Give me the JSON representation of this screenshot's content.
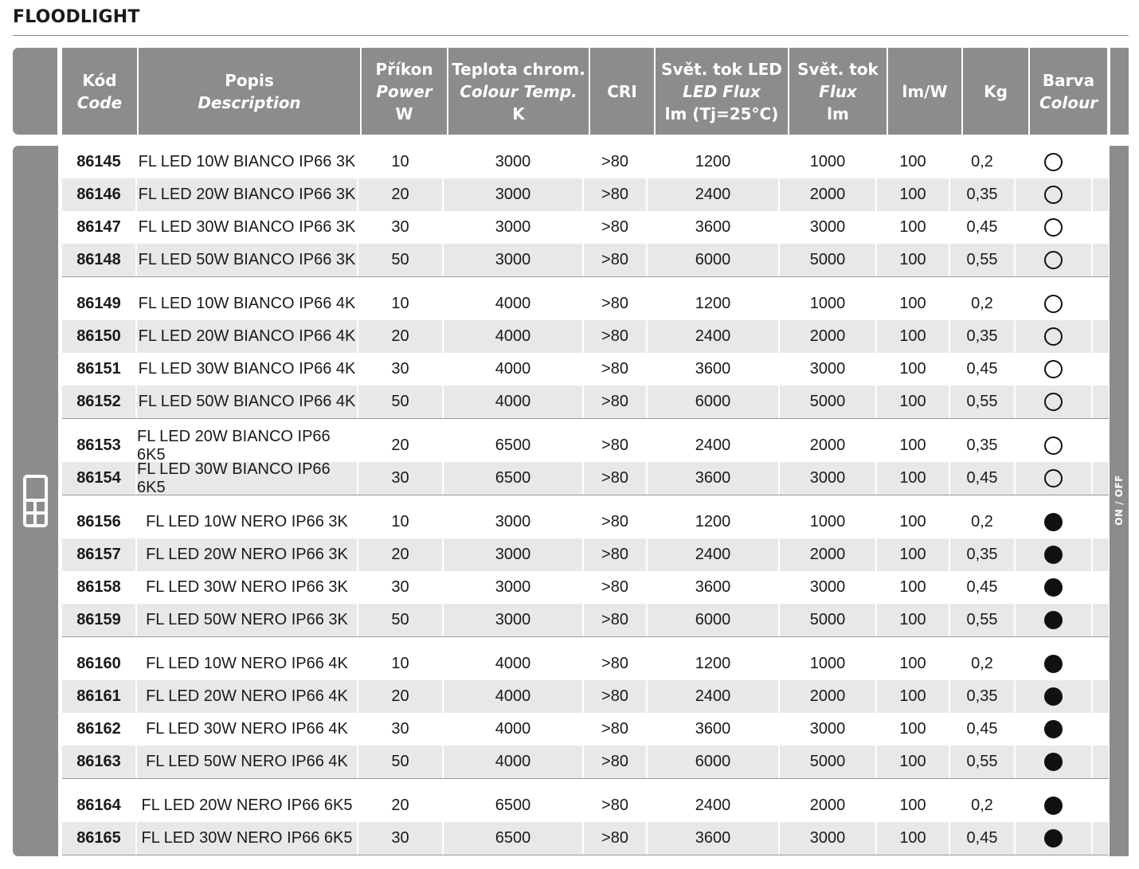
{
  "title": "FLOODLIGHT",
  "side_label": "ON / OFF",
  "columns": [
    {
      "key": "code",
      "lines": [
        "Kód"
      ],
      "italic": [
        "Code"
      ],
      "extra": []
    },
    {
      "key": "desc",
      "lines": [
        "Popis"
      ],
      "italic": [
        "Description"
      ],
      "extra": []
    },
    {
      "key": "power",
      "lines": [
        "Příkon"
      ],
      "italic": [
        "Power"
      ],
      "extra": [
        "W"
      ]
    },
    {
      "key": "temp",
      "lines": [
        "Teplota chrom."
      ],
      "italic": [
        "Colour Temp."
      ],
      "extra": [
        "K"
      ]
    },
    {
      "key": "cri",
      "lines": [
        "CRI"
      ],
      "italic": [],
      "extra": []
    },
    {
      "key": "ledflux",
      "lines": [
        "Svět. tok LED"
      ],
      "italic": [
        "LED Flux"
      ],
      "extra": [
        "lm (Tj=25°C)"
      ]
    },
    {
      "key": "flux",
      "lines": [
        "Svět. tok"
      ],
      "italic": [
        "Flux"
      ],
      "extra": [
        "lm"
      ]
    },
    {
      "key": "lmw",
      "lines": [
        "lm/W"
      ],
      "italic": [],
      "extra": []
    },
    {
      "key": "kg",
      "lines": [
        "Kg"
      ],
      "italic": [],
      "extra": []
    },
    {
      "key": "colour",
      "lines": [
        "Barva"
      ],
      "italic": [
        "Colour"
      ],
      "extra": []
    }
  ],
  "groups": [
    [
      {
        "code": "86145",
        "desc": "FL LED 10W BIANCO IP66 3K",
        "power": "10",
        "temp": "3000",
        "cri": ">80",
        "ledflux": "1200",
        "flux": "1000",
        "lmw": "100",
        "kg": "0,2",
        "colour": "white"
      },
      {
        "code": "86146",
        "desc": "FL LED 20W BIANCO IP66 3K",
        "power": "20",
        "temp": "3000",
        "cri": ">80",
        "ledflux": "2400",
        "flux": "2000",
        "lmw": "100",
        "kg": "0,35",
        "colour": "white"
      },
      {
        "code": "86147",
        "desc": "FL LED 30W BIANCO IP66 3K",
        "power": "30",
        "temp": "3000",
        "cri": ">80",
        "ledflux": "3600",
        "flux": "3000",
        "lmw": "100",
        "kg": "0,45",
        "colour": "white"
      },
      {
        "code": "86148",
        "desc": "FL LED 50W BIANCO IP66 3K",
        "power": "50",
        "temp": "3000",
        "cri": ">80",
        "ledflux": "6000",
        "flux": "5000",
        "lmw": "100",
        "kg": "0,55",
        "colour": "white"
      }
    ],
    [
      {
        "code": "86149",
        "desc": "FL LED 10W BIANCO IP66 4K",
        "power": "10",
        "temp": "4000",
        "cri": ">80",
        "ledflux": "1200",
        "flux": "1000",
        "lmw": "100",
        "kg": "0,2",
        "colour": "white"
      },
      {
        "code": "86150",
        "desc": "FL LED 20W BIANCO IP66 4K",
        "power": "20",
        "temp": "4000",
        "cri": ">80",
        "ledflux": "2400",
        "flux": "2000",
        "lmw": "100",
        "kg": "0,35",
        "colour": "white"
      },
      {
        "code": "86151",
        "desc": "FL LED 30W BIANCO IP66 4K",
        "power": "30",
        "temp": "4000",
        "cri": ">80",
        "ledflux": "3600",
        "flux": "3000",
        "lmw": "100",
        "kg": "0,45",
        "colour": "white"
      },
      {
        "code": "86152",
        "desc": "FL LED 50W BIANCO IP66 4K",
        "power": "50",
        "temp": "4000",
        "cri": ">80",
        "ledflux": "6000",
        "flux": "5000",
        "lmw": "100",
        "kg": "0,55",
        "colour": "white"
      }
    ],
    [
      {
        "code": "86153",
        "desc": "FL LED 20W BIANCO IP66 6K5",
        "power": "20",
        "temp": "6500",
        "cri": ">80",
        "ledflux": "2400",
        "flux": "2000",
        "lmw": "100",
        "kg": "0,35",
        "colour": "white"
      },
      {
        "code": "86154",
        "desc": "FL LED 30W BIANCO IP66 6K5",
        "power": "30",
        "temp": "6500",
        "cri": ">80",
        "ledflux": "3600",
        "flux": "3000",
        "lmw": "100",
        "kg": "0,45",
        "colour": "white"
      }
    ],
    [
      {
        "code": "86156",
        "desc": "FL LED 10W NERO IP66 3K",
        "power": "10",
        "temp": "3000",
        "cri": ">80",
        "ledflux": "1200",
        "flux": "1000",
        "lmw": "100",
        "kg": "0,2",
        "colour": "black"
      },
      {
        "code": "86157",
        "desc": "FL LED 20W NERO IP66 3K",
        "power": "20",
        "temp": "3000",
        "cri": ">80",
        "ledflux": "2400",
        "flux": "2000",
        "lmw": "100",
        "kg": "0,35",
        "colour": "black"
      },
      {
        "code": "86158",
        "desc": "FL LED 30W NERO IP66 3K",
        "power": "30",
        "temp": "3000",
        "cri": ">80",
        "ledflux": "3600",
        "flux": "3000",
        "lmw": "100",
        "kg": "0,45",
        "colour": "black"
      },
      {
        "code": "86159",
        "desc": "FL LED 50W NERO IP66 3K",
        "power": "50",
        "temp": "3000",
        "cri": ">80",
        "ledflux": "6000",
        "flux": "5000",
        "lmw": "100",
        "kg": "0,55",
        "colour": "black"
      }
    ],
    [
      {
        "code": "86160",
        "desc": "FL LED 10W NERO IP66 4K",
        "power": "10",
        "temp": "4000",
        "cri": ">80",
        "ledflux": "1200",
        "flux": "1000",
        "lmw": "100",
        "kg": "0,2",
        "colour": "black"
      },
      {
        "code": "86161",
        "desc": "FL LED 20W NERO IP66 4K",
        "power": "20",
        "temp": "4000",
        "cri": ">80",
        "ledflux": "2400",
        "flux": "2000",
        "lmw": "100",
        "kg": "0,35",
        "colour": "black"
      },
      {
        "code": "86162",
        "desc": "FL LED 30W NERO IP66 4K",
        "power": "30",
        "temp": "4000",
        "cri": ">80",
        "ledflux": "3600",
        "flux": "3000",
        "lmw": "100",
        "kg": "0,45",
        "colour": "black"
      },
      {
        "code": "86163",
        "desc": "FL LED 50W NERO IP66 4K",
        "power": "50",
        "temp": "4000",
        "cri": ">80",
        "ledflux": "6000",
        "flux": "5000",
        "lmw": "100",
        "kg": "0,55",
        "colour": "black"
      }
    ],
    [
      {
        "code": "86164",
        "desc": "FL LED 20W NERO IP66 6K5",
        "power": "20",
        "temp": "6500",
        "cri": ">80",
        "ledflux": "2400",
        "flux": "2000",
        "lmw": "100",
        "kg": "0,2",
        "colour": "black"
      },
      {
        "code": "86165",
        "desc": "FL LED 30W NERO IP66 6K5",
        "power": "30",
        "temp": "6500",
        "cri": ">80",
        "ledflux": "3600",
        "flux": "3000",
        "lmw": "100",
        "kg": "0,45",
        "colour": "black"
      }
    ]
  ]
}
